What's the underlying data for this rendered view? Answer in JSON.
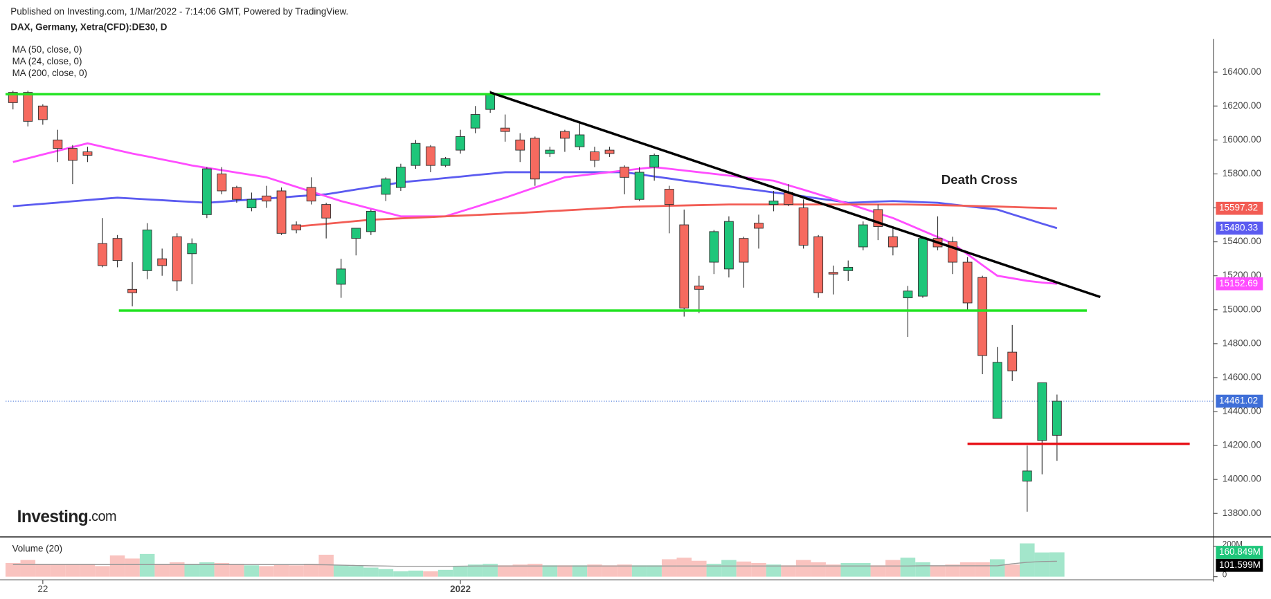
{
  "chart_data": {
    "type": "candlestick",
    "subtitle": "Published on Investing.com, 1/Mar/2022 - 7:14:06 GMT, Powered by TradingView.",
    "title": "DAX, Germany, Xetra(CFD):DE30, D",
    "logo": [
      "Investing",
      ".com"
    ],
    "categories": [
      null,
      null,
      "22",
      null,
      null,
      null,
      null,
      null,
      null,
      null,
      null,
      null,
      null,
      null,
      null,
      null,
      null,
      null,
      null,
      null,
      null,
      null,
      null,
      null,
      null,
      null,
      null,
      null,
      null,
      null,
      "2022",
      null,
      null,
      null,
      null,
      null,
      null,
      null,
      null,
      null,
      null,
      null,
      null,
      null,
      null,
      null,
      null,
      null,
      null,
      null,
      null,
      null,
      null,
      null,
      null,
      null,
      null,
      null,
      null,
      null,
      null,
      null,
      null,
      null,
      null,
      null,
      null,
      null,
      null,
      null,
      null
    ],
    "open": [
      16280,
      16280,
      16200,
      16000,
      15950,
      15930,
      15390,
      15420,
      15120,
      15230,
      15300,
      15430,
      15330,
      15560,
      15800,
      15720,
      15600,
      15670,
      15700,
      15500,
      15720,
      15620,
      15150,
      15420,
      15460,
      15680,
      15720,
      15850,
      15960,
      15850,
      15940,
      16070,
      16180,
      16070,
      16000,
      16010,
      15920,
      16050,
      15960,
      15930,
      15940,
      15840,
      15650,
      15840,
      15710,
      15500,
      15140,
      15280,
      15240,
      15420,
      15510,
      15620,
      15690,
      15600,
      15430,
      15220,
      15230,
      15370,
      15590,
      15430,
      15070,
      15080,
      15420,
      15400,
      15280,
      15190,
      14360,
      14750,
      13990,
      14230,
      14260
    ],
    "high": [
      16290,
      16290,
      16210,
      16060,
      15970,
      15960,
      15540,
      15440,
      15280,
      15510,
      15360,
      15450,
      15420,
      15840,
      15840,
      15730,
      15690,
      15730,
      15720,
      15520,
      15780,
      15630,
      15300,
      15480,
      15590,
      15780,
      15860,
      16000,
      15970,
      15900,
      16060,
      16200,
      16290,
      16150,
      16040,
      16020,
      15960,
      16060,
      16100,
      15960,
      15960,
      15850,
      15840,
      15920,
      15730,
      15590,
      15200,
      15470,
      15550,
      15430,
      15560,
      15700,
      15740,
      15650,
      15440,
      15260,
      15290,
      15520,
      15620,
      15480,
      15140,
      15430,
      15550,
      15430,
      15310,
      15200,
      14780,
      14910,
      14200,
      14570,
      14500
    ],
    "low": [
      16180,
      16080,
      16090,
      15870,
      15740,
      15870,
      15250,
      15250,
      15020,
      15180,
      15200,
      15110,
      15150,
      15540,
      15680,
      15630,
      15580,
      15600,
      15440,
      15450,
      15620,
      15420,
      15070,
      15320,
      15440,
      15640,
      15700,
      15830,
      15810,
      15840,
      15920,
      16040,
      16160,
      15990,
      15870,
      15730,
      15900,
      15930,
      15940,
      15840,
      15900,
      15680,
      15640,
      15760,
      15450,
      14960,
      14980,
      15210,
      15190,
      15130,
      15360,
      15580,
      15610,
      15360,
      15070,
      15090,
      15170,
      15350,
      15410,
      15320,
      14840,
      15070,
      15350,
      15210,
      15000,
      14620,
      14360,
      14580,
      13810,
      14030,
      14110
    ],
    "close": [
      16220,
      16110,
      16120,
      15950,
      15880,
      15910,
      15260,
      15290,
      15100,
      15470,
      15260,
      15170,
      15390,
      15830,
      15700,
      15650,
      15650,
      15640,
      15450,
      15470,
      15640,
      15540,
      15240,
      15480,
      15580,
      15770,
      15840,
      15980,
      15850,
      15890,
      16020,
      16150,
      16270,
      16050,
      15940,
      15770,
      15940,
      16010,
      16030,
      15880,
      15920,
      15780,
      15810,
      15910,
      15620,
      15010,
      15120,
      15460,
      15520,
      15280,
      15480,
      15640,
      15620,
      15380,
      15100,
      15210,
      15250,
      15500,
      15490,
      15370,
      15110,
      15420,
      15370,
      15280,
      15040,
      14730,
      14690,
      14640,
      14050,
      14570,
      14461.02
    ],
    "up_color": "#1ec67a",
    "down_color": "#f66a5f",
    "price_line_color": "#3f6fd8",
    "ylim": [
      13666,
      16586
    ],
    "yticks": [
      {
        "value": 13800,
        "label": "13800.00"
      },
      {
        "value": 14000,
        "label": "14000.00"
      },
      {
        "value": 14200,
        "label": "14200.00"
      },
      {
        "value": 14400,
        "label": "14400.00"
      },
      {
        "value": 14600,
        "label": "14600.00"
      },
      {
        "value": 14800,
        "label": "14800.00"
      },
      {
        "value": 15000,
        "label": "15000.00"
      },
      {
        "value": 15200,
        "label": "15200.00"
      },
      {
        "value": 15400,
        "label": "15400.00"
      },
      {
        "value": 15600,
        "label": "15600.00"
      },
      {
        "value": 15800,
        "label": "15800.00"
      },
      {
        "value": 16000,
        "label": "16000.00"
      },
      {
        "value": 16200,
        "label": "16200.00"
      },
      {
        "value": 16400,
        "label": "16400.00"
      }
    ],
    "series": [
      {
        "name": "MA (50, close, 0)",
        "color": "#5b5bf0",
        "values": [
          15610,
          15617,
          15624,
          15631,
          15639,
          15646,
          15653,
          15660,
          15655,
          15650,
          15645,
          15640,
          15635,
          15630,
          15636,
          15643,
          15649,
          15655,
          15661,
          15668,
          15674,
          15680,
          15694,
          15708,
          15722,
          15736,
          15750,
          15759,
          15767,
          15776,
          15784,
          15793,
          15801,
          15810,
          15810,
          15810,
          15810,
          15810,
          15810,
          15810,
          15810,
          15810,
          15798,
          15785,
          15773,
          15760,
          15749,
          15737,
          15726,
          15714,
          15703,
          15691,
          15680,
          15668,
          15655,
          15643,
          15630,
          15633,
          15637,
          15640,
          15637,
          15633,
          15630,
          15620,
          15610,
          15600,
          15590,
          15562,
          15535,
          15507,
          15480.33
        ]
      },
      {
        "name": "MA (24, close, 0)",
        "color": "#ff4dff",
        "values": [
          15870,
          15892,
          15914,
          15936,
          15958,
          15980,
          15960,
          15940,
          15920,
          15903,
          15885,
          15868,
          15850,
          15836,
          15822,
          15808,
          15794,
          15780,
          15752,
          15724,
          15696,
          15668,
          15640,
          15618,
          15595,
          15573,
          15550,
          15550,
          15550,
          15550,
          15578,
          15605,
          15633,
          15660,
          15690,
          15720,
          15750,
          15780,
          15790,
          15800,
          15810,
          15820,
          15830,
          15840,
          15830,
          15820,
          15810,
          15800,
          15790,
          15780,
          15770,
          15760,
          15733,
          15707,
          15680,
          15652,
          15624,
          15596,
          15568,
          15540,
          15503,
          15465,
          15428,
          15390,
          15327,
          15263,
          15200,
          15185,
          15170,
          15160,
          15152.69
        ]
      },
      {
        "name": "MA (200, close, 0)",
        "color": "#f25c54",
        "values": [
          null,
          null,
          null,
          null,
          null,
          null,
          null,
          null,
          null,
          null,
          null,
          null,
          null,
          null,
          null,
          null,
          null,
          null,
          null,
          15490,
          15498,
          15506,
          15514,
          15522,
          15530,
          15534,
          15538,
          15542,
          15546,
          15550,
          15554,
          15558,
          15562,
          15566,
          15570,
          15575,
          15580,
          15585,
          15590,
          15595,
          15600,
          15605,
          15608,
          15610,
          15612,
          15614,
          15616,
          15618,
          15620,
          15620,
          15620,
          15620,
          15620,
          15620,
          15620,
          15620,
          15620,
          15620,
          15620,
          15620,
          15620,
          15618,
          15616,
          15614,
          15612,
          15610,
          15608,
          15605,
          15602,
          15600,
          15597.32
        ]
      }
    ],
    "drawings": [
      {
        "color": "#22e322",
        "x": [
          -0.5,
          72.9
        ],
        "y": [
          16270,
          16270
        ]
      },
      {
        "color": "#22e322",
        "x": [
          7.1,
          72.0
        ],
        "y": [
          14995,
          14995
        ]
      },
      {
        "color": "#000000",
        "x": [
          32,
          72.9
        ],
        "y": [
          16280,
          15075
        ]
      },
      {
        "color": "#e8141b",
        "x": [
          64.0,
          78.9
        ],
        "y": [
          14210,
          14210
        ]
      }
    ],
    "annotations": [
      {
        "text": "Death Cross",
        "x": 64.8,
        "y": 15760
      }
    ],
    "volume": {
      "title": "Volume (20)",
      "up_color": "#a3e6cb",
      "down_color": "#f9c3bf",
      "ylim": [
        0,
        257
      ],
      "yticks": [
        0,
        {
          "value": 200,
          "label": "200M"
        }
      ],
      "values": [
        90,
        110,
        85,
        85,
        85,
        85,
        70,
        140,
        120,
        150,
        85,
        95,
        85,
        95,
        90,
        85,
        75,
        70,
        80,
        75,
        85,
        145,
        75,
        70,
        60,
        50,
        35,
        40,
        35,
        45,
        70,
        80,
        85,
        75,
        80,
        85,
        75,
        75,
        75,
        80,
        75,
        80,
        75,
        75,
        115,
        125,
        105,
        85,
        110,
        100,
        90,
        80,
        75,
        110,
        95,
        80,
        90,
        90,
        75,
        110,
        125,
        95,
        75,
        80,
        95,
        95,
        115,
        80,
        220,
        160,
        160.849
      ],
      "last_label": "160.849M",
      "ma": {
        "color": "#999999",
        "values": [
          80,
          80,
          80,
          80,
          80,
          80,
          80,
          80,
          80,
          80,
          80,
          80,
          80,
          80,
          80,
          80,
          80,
          80,
          80,
          80,
          80,
          78,
          76,
          74,
          72,
          70,
          68,
          68,
          68,
          68,
          69,
          70,
          70,
          70,
          70,
          70,
          70,
          70,
          70,
          70,
          70,
          70,
          70,
          70,
          70,
          70,
          70,
          70,
          70,
          70,
          70,
          70,
          70,
          70,
          70,
          70,
          70,
          70,
          70,
          70,
          70,
          72,
          72,
          72,
          72,
          72,
          72,
          85,
          95,
          100,
          101.599
        ],
        "last_label": "101.599M"
      }
    }
  }
}
